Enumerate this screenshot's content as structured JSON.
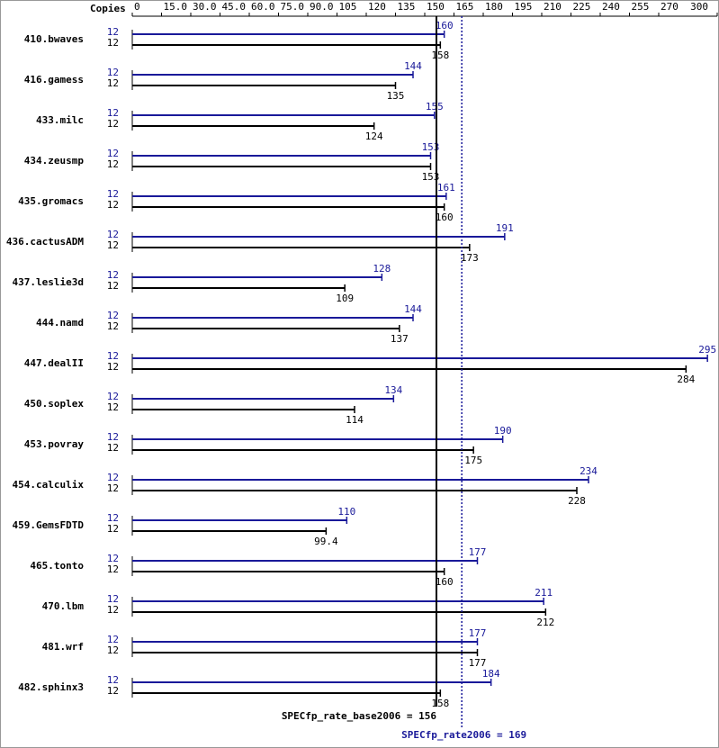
{
  "chart_data": {
    "type": "bar",
    "x_axis_label": "Copies",
    "xlim": [
      0,
      300
    ],
    "xticks": [
      0,
      {
        "value": 15,
        "label": "15.0"
      },
      {
        "value": 30,
        "label": "30.0"
      },
      {
        "value": 45,
        "label": "45.0"
      },
      {
        "value": 60,
        "label": "60.0"
      },
      {
        "value": 75,
        "label": "75.0"
      },
      {
        "value": 90,
        "label": "90.0"
      },
      105,
      120,
      135,
      150,
      165,
      180,
      195,
      210,
      225,
      240,
      255,
      270,
      300
    ],
    "categories": [
      "410.bwaves",
      "416.gamess",
      "433.milc",
      "434.zeusmp",
      "435.gromacs",
      "436.cactusADM",
      "437.leslie3d",
      "444.namd",
      "447.dealII",
      "450.soplex",
      "453.povray",
      "454.calculix",
      "459.GemsFDTD",
      "465.tonto",
      "470.lbm",
      "481.wrf",
      "482.sphinx3"
    ],
    "series": [
      {
        "color": "#191999",
        "copies": [
          12,
          12,
          12,
          12,
          12,
          12,
          12,
          12,
          12,
          12,
          12,
          12,
          12,
          12,
          12,
          12,
          12
        ],
        "values": [
          160,
          144,
          155,
          153,
          161,
          191,
          128,
          144,
          295,
          134,
          190,
          234,
          110,
          177,
          211,
          177,
          184
        ]
      },
      {
        "color": "#000000",
        "copies": [
          12,
          12,
          12,
          12,
          12,
          12,
          12,
          12,
          12,
          12,
          12,
          12,
          12,
          12,
          12,
          12,
          12
        ],
        "values": [
          158,
          135,
          124,
          153,
          160,
          173,
          109,
          137,
          284,
          114,
          175,
          228,
          99.4,
          160,
          212,
          177,
          158
        ]
      }
    ],
    "reference_lines": [
      {
        "label": "SPECfp_rate_base2006 = 156",
        "value": 156,
        "color": "#000000"
      },
      {
        "label": "SPECfp_rate2006 = 169",
        "value": 169,
        "color": "#191999"
      }
    ]
  }
}
